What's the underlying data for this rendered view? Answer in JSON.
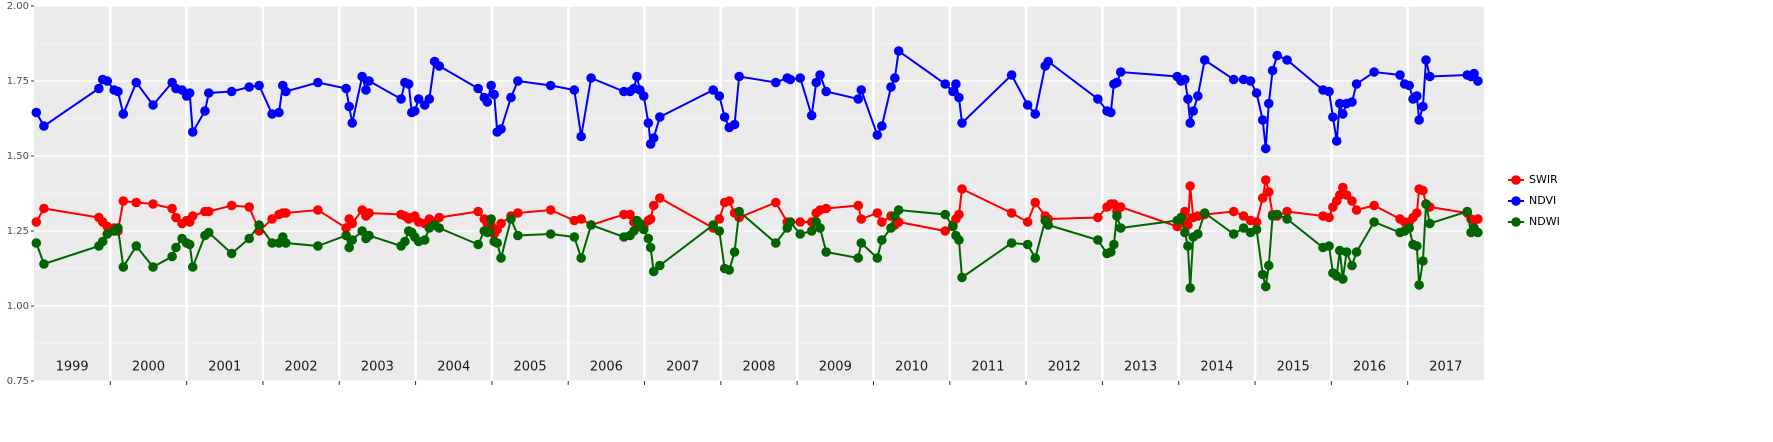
{
  "chart_data": {
    "type": "line",
    "x": [
      1999.03,
      1999.13,
      1999.85,
      1999.9,
      1999.96,
      2000.05,
      2000.1,
      2000.17,
      2000.34,
      2000.56,
      2000.81,
      2000.86,
      2000.94,
      2001.0,
      2001.04,
      2001.08,
      2001.24,
      2001.29,
      2001.59,
      2001.82,
      2001.95,
      2002.12,
      2002.21,
      2002.26,
      2002.3,
      2002.72,
      2003.09,
      2003.13,
      2003.17,
      2003.3,
      2003.35,
      2003.39,
      2003.81,
      2003.86,
      2003.91,
      2003.95,
      2003.99,
      2004.04,
      2004.12,
      2004.18,
      2004.25,
      2004.31,
      2004.82,
      2004.9,
      2004.94,
      2004.99,
      2005.03,
      2005.07,
      2005.12,
      2005.25,
      2005.34,
      2005.77,
      2006.08,
      2006.17,
      2006.3,
      2006.73,
      2006.81,
      2006.86,
      2006.9,
      2006.94,
      2006.99,
      2007.05,
      2007.08,
      2007.12,
      2007.2,
      2007.9,
      2007.98,
      2008.05,
      2008.11,
      2008.18,
      2008.24,
      2008.72,
      2008.87,
      2008.91,
      2009.04,
      2009.19,
      2009.25,
      2009.3,
      2009.38,
      2009.8,
      2009.84,
      2010.05,
      2010.11,
      2010.23,
      2010.28,
      2010.33,
      2010.94,
      2011.04,
      2011.08,
      2011.12,
      2011.16,
      2011.81,
      2012.02,
      2012.12,
      2012.25,
      2012.29,
      2012.94,
      2013.06,
      2013.11,
      2013.15,
      2013.19,
      2013.24,
      2013.98,
      2014.03,
      2014.08,
      2014.12,
      2014.15,
      2014.19,
      2014.25,
      2014.34,
      2014.72,
      2014.85,
      2014.94,
      2015.02,
      2015.1,
      2015.14,
      2015.18,
      2015.23,
      2015.29,
      2015.42,
      2015.89,
      2015.97,
      2016.02,
      2016.07,
      2016.11,
      2016.15,
      2016.2,
      2016.27,
      2016.33,
      2016.56,
      2016.9,
      2016.96,
      2017.02,
      2017.07,
      2017.12,
      2017.15,
      2017.2,
      2017.24,
      2017.29,
      2017.78,
      2017.83,
      2017.87,
      2017.92
    ],
    "series": [
      {
        "name": "SWIR",
        "color": "#ff0000",
        "values": [
          1.28,
          1.325,
          1.295,
          1.28,
          1.265,
          1.26,
          1.25,
          1.35,
          1.345,
          1.34,
          1.325,
          1.295,
          1.275,
          1.285,
          1.28,
          1.3,
          1.315,
          1.315,
          1.335,
          1.33,
          1.25,
          1.29,
          1.305,
          1.31,
          1.31,
          1.32,
          1.26,
          1.29,
          1.275,
          1.32,
          1.3,
          1.31,
          1.305,
          1.3,
          1.29,
          1.295,
          1.3,
          1.28,
          1.275,
          1.29,
          1.28,
          1.295,
          1.315,
          1.29,
          1.275,
          1.27,
          1.24,
          1.255,
          1.275,
          1.3,
          1.31,
          1.32,
          1.285,
          1.29,
          1.27,
          1.305,
          1.305,
          1.28,
          1.27,
          1.265,
          1.265,
          1.285,
          1.29,
          1.335,
          1.36,
          1.26,
          1.29,
          1.345,
          1.35,
          1.31,
          1.295,
          1.345,
          1.28,
          1.28,
          1.28,
          1.28,
          1.31,
          1.32,
          1.325,
          1.335,
          1.29,
          1.31,
          1.28,
          1.3,
          1.27,
          1.28,
          1.25,
          1.27,
          1.29,
          1.305,
          1.39,
          1.31,
          1.28,
          1.345,
          1.3,
          1.29,
          1.295,
          1.33,
          1.34,
          1.34,
          1.315,
          1.33,
          1.265,
          1.285,
          1.315,
          1.27,
          1.4,
          1.295,
          1.3,
          1.305,
          1.315,
          1.3,
          1.285,
          1.28,
          1.36,
          1.42,
          1.38,
          1.305,
          1.3,
          1.315,
          1.3,
          1.295,
          1.33,
          1.35,
          1.37,
          1.395,
          1.37,
          1.35,
          1.32,
          1.335,
          1.29,
          1.28,
          1.28,
          1.295,
          1.31,
          1.39,
          1.385,
          1.34,
          1.33,
          1.31,
          1.29,
          1.285,
          1.29
        ]
      },
      {
        "name": "NDVI",
        "color": "#0000ff",
        "values": [
          1.645,
          1.6,
          1.725,
          1.755,
          1.75,
          1.72,
          1.715,
          1.64,
          1.745,
          1.67,
          1.745,
          1.725,
          1.72,
          1.7,
          1.71,
          1.58,
          1.65,
          1.71,
          1.715,
          1.73,
          1.735,
          1.64,
          1.645,
          1.735,
          1.715,
          1.745,
          1.725,
          1.665,
          1.61,
          1.765,
          1.72,
          1.75,
          1.69,
          1.745,
          1.74,
          1.645,
          1.65,
          1.69,
          1.67,
          1.69,
          1.815,
          1.8,
          1.725,
          1.695,
          1.68,
          1.735,
          1.705,
          1.58,
          1.59,
          1.695,
          1.75,
          1.735,
          1.72,
          1.565,
          1.76,
          1.715,
          1.715,
          1.725,
          1.765,
          1.72,
          1.7,
          1.61,
          1.54,
          1.56,
          1.63,
          1.72,
          1.7,
          1.63,
          1.595,
          1.605,
          1.765,
          1.745,
          1.76,
          1.755,
          1.76,
          1.635,
          1.745,
          1.77,
          1.715,
          1.69,
          1.72,
          1.57,
          1.6,
          1.73,
          1.76,
          1.85,
          1.74,
          1.715,
          1.74,
          1.695,
          1.61,
          1.77,
          1.67,
          1.64,
          1.8,
          1.815,
          1.69,
          1.65,
          1.645,
          1.74,
          1.745,
          1.78,
          1.765,
          1.75,
          1.755,
          1.69,
          1.61,
          1.65,
          1.7,
          1.82,
          1.755,
          1.755,
          1.75,
          1.71,
          1.62,
          1.525,
          1.675,
          1.785,
          1.835,
          1.82,
          1.72,
          1.715,
          1.63,
          1.55,
          1.675,
          1.64,
          1.675,
          1.68,
          1.74,
          1.78,
          1.77,
          1.74,
          1.735,
          1.69,
          1.7,
          1.62,
          1.665,
          1.82,
          1.765,
          1.77,
          1.765,
          1.775,
          1.75
        ]
      },
      {
        "name": "NDWI",
        "color": "#006400",
        "values": [
          1.21,
          1.14,
          1.2,
          1.215,
          1.24,
          1.25,
          1.26,
          1.13,
          1.2,
          1.13,
          1.165,
          1.195,
          1.225,
          1.21,
          1.205,
          1.13,
          1.235,
          1.245,
          1.175,
          1.225,
          1.27,
          1.21,
          1.21,
          1.23,
          1.21,
          1.2,
          1.235,
          1.195,
          1.22,
          1.25,
          1.225,
          1.235,
          1.2,
          1.215,
          1.25,
          1.245,
          1.23,
          1.215,
          1.22,
          1.26,
          1.27,
          1.26,
          1.205,
          1.25,
          1.245,
          1.29,
          1.215,
          1.21,
          1.16,
          1.29,
          1.235,
          1.24,
          1.23,
          1.16,
          1.27,
          1.23,
          1.235,
          1.25,
          1.285,
          1.275,
          1.255,
          1.225,
          1.195,
          1.115,
          1.135,
          1.27,
          1.25,
          1.125,
          1.12,
          1.18,
          1.315,
          1.21,
          1.26,
          1.28,
          1.24,
          1.25,
          1.28,
          1.26,
          1.18,
          1.16,
          1.21,
          1.16,
          1.22,
          1.26,
          1.3,
          1.32,
          1.305,
          1.265,
          1.235,
          1.22,
          1.095,
          1.21,
          1.205,
          1.16,
          1.285,
          1.27,
          1.22,
          1.175,
          1.18,
          1.205,
          1.3,
          1.26,
          1.285,
          1.295,
          1.245,
          1.2,
          1.06,
          1.23,
          1.24,
          1.31,
          1.24,
          1.26,
          1.245,
          1.255,
          1.105,
          1.065,
          1.135,
          1.3,
          1.305,
          1.29,
          1.195,
          1.2,
          1.11,
          1.1,
          1.185,
          1.09,
          1.18,
          1.135,
          1.18,
          1.28,
          1.245,
          1.25,
          1.26,
          1.205,
          1.2,
          1.07,
          1.15,
          1.34,
          1.275,
          1.315,
          1.245,
          1.26,
          1.245
        ]
      }
    ],
    "year_labels": [
      "1999",
      "2000",
      "2001",
      "2002",
      "2003",
      "2004",
      "2005",
      "2006",
      "2007",
      "2008",
      "2009",
      "2010",
      "2011",
      "2012",
      "2013",
      "2014",
      "2015",
      "2016",
      "2017"
    ],
    "xlim": [
      1999,
      2018
    ],
    "xticks": [
      2000,
      2001,
      2002,
      2003,
      2004,
      2005,
      2006,
      2007,
      2008,
      2009,
      2010,
      2011,
      2012,
      2013,
      2014,
      2015,
      2016,
      2017
    ],
    "ylim": [
      0.75,
      2.0
    ],
    "yticks": [
      0.75,
      {
        "value": 1,
        "label": "1.00"
      },
      1.25,
      {
        "value": 1.5,
        "label": "1.50"
      },
      1.75,
      {
        "value": 2,
        "label": "2.00"
      }
    ],
    "grid": true,
    "legend": "right"
  }
}
